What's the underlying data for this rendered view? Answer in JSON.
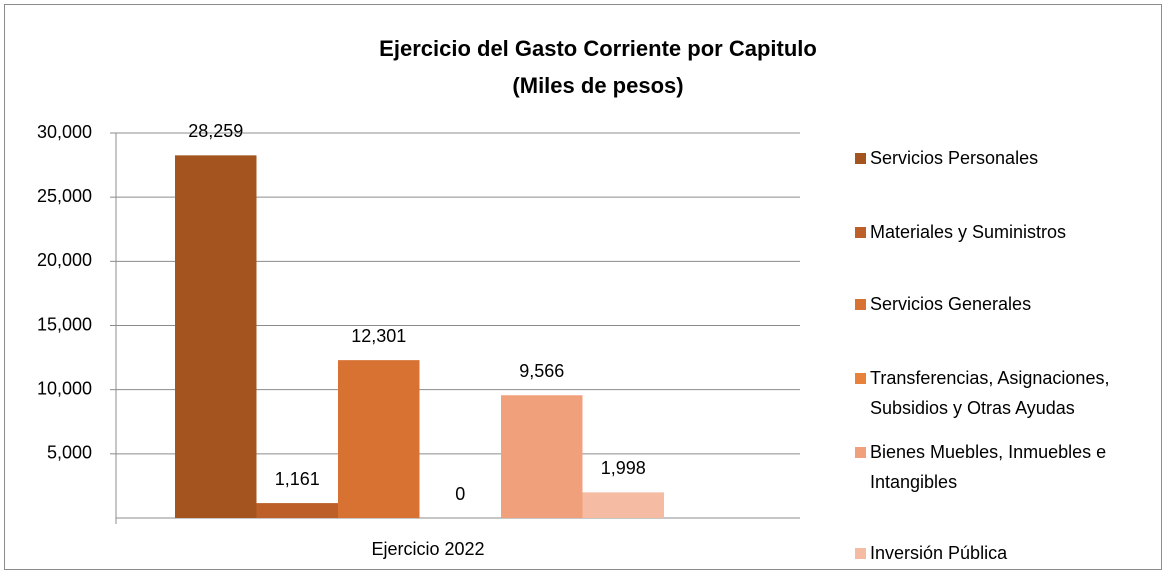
{
  "chart_data": {
    "type": "bar",
    "title": "Ejercicio del Gasto Corriente por Capitulo",
    "subtitle": "(Miles de pesos)",
    "categories": [
      "Ejercicio 2022"
    ],
    "series": [
      {
        "name": "Servicios Personales",
        "color": "#a4541f",
        "values": [
          28259
        ],
        "value_labels": [
          "28,259"
        ]
      },
      {
        "name": "Materiales y Suministros",
        "color": "#bd5f29",
        "values": [
          1161
        ],
        "value_labels": [
          "1,161"
        ]
      },
      {
        "name": "Servicios Generales",
        "color": "#d77232",
        "values": [
          12301
        ],
        "value_labels": [
          "12,301"
        ]
      },
      {
        "name": "Transferencias, Asignaciones, Subsidios y Otras Ayudas",
        "color": "#e8823a",
        "values": [
          0
        ],
        "value_labels": [
          "0"
        ]
      },
      {
        "name": "Bienes Muebles, Inmuebles e Intangibles",
        "color": "#f0a17b",
        "values": [
          9566
        ],
        "value_labels": [
          "9,566"
        ]
      },
      {
        "name": "Inversión Pública",
        "color": "#f5bca3",
        "values": [
          1998
        ],
        "value_labels": [
          "1,998"
        ]
      }
    ],
    "ylim": [
      0,
      30000
    ],
    "yticks": [
      {
        "value": 5000,
        "label": "5,000"
      },
      {
        "value": 10000,
        "label": "10,000"
      },
      {
        "value": 15000,
        "label": "15,000"
      },
      {
        "value": 20000,
        "label": "20,000"
      },
      {
        "value": 25000,
        "label": "25,000"
      },
      {
        "value": 30000,
        "label": "30,000"
      }
    ],
    "grid": true,
    "legend": "right"
  }
}
